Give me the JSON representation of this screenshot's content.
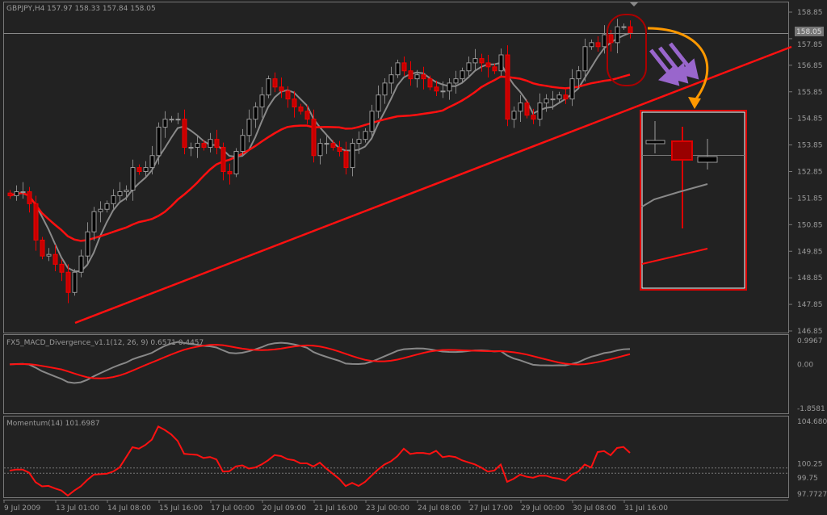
{
  "chart_title": "GBPJPY,H4  157.97 158.33 157.84 158.05",
  "current_price_label": "158.05",
  "colors": {
    "background": "#222222",
    "bull_body": "#000000",
    "bull_outline": "#9a9a9a",
    "bear_body": "#c80000",
    "ma_fast": "#8a8a8a",
    "ma_slow": "#ff1010",
    "trendline": "#ff1010",
    "annotation_purple": "#9966cc",
    "annotation_orange": "#ff9900"
  },
  "chart_data": [
    {
      "type": "candlestick",
      "ylim": [
        146.85,
        158.85
      ],
      "y_ticks": [
        "158.85",
        "157.85",
        "156.85",
        "155.85",
        "154.85",
        "153.85",
        "152.85",
        "151.85",
        "150.85",
        "149.85",
        "148.85",
        "147.85",
        "146.85"
      ],
      "x_ticks": [
        "9 Jul 2009",
        "13 Jul 01:00",
        "14 Jul 08:00",
        "15 Jul 16:00",
        "17 Jul 00:00",
        "20 Jul 09:00",
        "21 Jul 16:00",
        "23 Jul 00:00",
        "24 Jul 08:00",
        "27 Jul 17:00",
        "29 Jul 00:00",
        "30 Jul 08:00",
        "31 Jul 16:00"
      ],
      "closes": [
        151.94,
        152.09,
        152.09,
        151.64,
        150.27,
        149.67,
        149.73,
        149.36,
        149.06,
        148.3,
        149.06,
        149.67,
        150.58,
        151.34,
        151.43,
        151.64,
        151.94,
        152.09,
        152.15,
        153.0,
        152.85,
        153.0,
        153.45,
        154.52,
        154.82,
        154.82,
        154.82,
        153.76,
        153.76,
        153.91,
        153.76,
        154.06,
        153.76,
        152.85,
        152.76,
        153.61,
        154.21,
        154.82,
        155.28,
        155.73,
        156.34,
        156.03,
        155.88,
        155.58,
        155.28,
        155.12,
        154.82,
        153.45,
        153.91,
        153.91,
        153.76,
        153.61,
        153.0,
        153.91,
        154.06,
        154.36,
        155.12,
        155.73,
        156.18,
        156.49,
        156.94,
        156.64,
        156.34,
        156.49,
        156.34,
        156.03,
        155.88,
        155.88,
        156.18,
        156.34,
        156.64,
        156.94,
        157.1,
        156.94,
        156.79,
        156.64,
        157.24,
        154.82,
        155.12,
        155.43,
        154.97,
        154.82,
        155.43,
        155.58,
        155.58,
        155.73,
        155.58,
        156.34,
        156.64,
        157.55,
        157.7,
        157.55,
        158.0,
        157.7,
        158.3,
        158.3,
        158.05
      ]
    },
    {
      "type": "line",
      "label": "FX5_MACD_Divergence_v1.1(12, 26, 9) 0.6571 0.4457",
      "y_ticks": [
        "0.9967",
        "0.00",
        "-1.8581"
      ],
      "ylim": [
        -1.8581,
        0.9967
      ]
    },
    {
      "type": "line",
      "label": "Momentum(14) 101.6987",
      "y_ticks": [
        "104.6803",
        "100.25",
        "99.75",
        "97.7727"
      ],
      "levels": [
        100.25,
        99.75
      ],
      "ylim": [
        97.7727,
        104.6803
      ]
    }
  ]
}
